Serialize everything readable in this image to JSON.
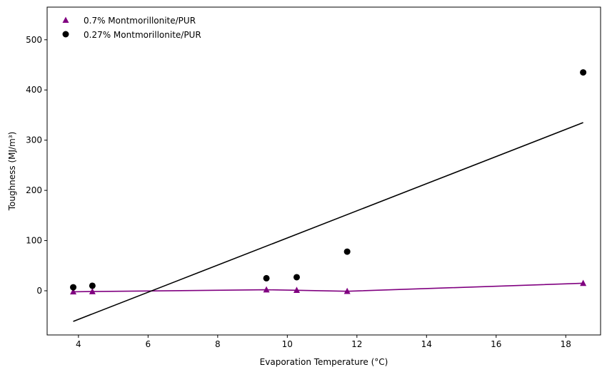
{
  "chart_data": {
    "type": "scatter",
    "title": "",
    "xlabel": "Evaporation Temperature (°C)",
    "ylabel": "Toughness (MJ/m³)",
    "xlim": [
      3.1,
      19.0
    ],
    "ylim": [
      -88,
      565
    ],
    "x_ticks": [
      4,
      6,
      8,
      10,
      12,
      14,
      16,
      18
    ],
    "y_ticks": [
      0,
      100,
      200,
      300,
      400,
      500
    ],
    "grid": false,
    "legend_position": "top-left",
    "series": [
      {
        "name": "0.7% Montmorillonite/PUR",
        "marker": "triangle",
        "color": "#800080",
        "x": [
          3.85,
          4.4,
          9.4,
          10.27,
          11.72,
          18.5
        ],
        "y": [
          -2,
          -1.5,
          2,
          1,
          -1,
          15
        ],
        "line": {
          "kind": "connect",
          "color": "#800080"
        }
      },
      {
        "name": "0.27% Montmorillonite/PUR",
        "marker": "circle",
        "color": "#000000",
        "x": [
          3.85,
          4.4,
          9.4,
          10.27,
          11.72,
          18.5
        ],
        "y": [
          7,
          10,
          25,
          27,
          78,
          435
        ],
        "line": {
          "kind": "linear-fit",
          "color": "#000000",
          "x": [
            3.85,
            18.5
          ],
          "y": [
            -61,
            335
          ]
        }
      }
    ]
  }
}
